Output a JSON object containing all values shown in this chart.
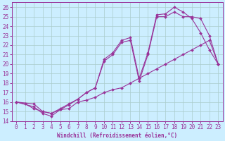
{
  "bg_color": "#cceeff",
  "grid_color": "#aacccc",
  "line_color": "#993399",
  "xlim": [
    -0.5,
    23.5
  ],
  "ylim": [
    14,
    26.5
  ],
  "xticks": [
    0,
    1,
    2,
    3,
    4,
    5,
    6,
    7,
    8,
    9,
    10,
    11,
    12,
    13,
    14,
    15,
    16,
    17,
    18,
    19,
    20,
    21,
    22,
    23
  ],
  "yticks": [
    14,
    15,
    16,
    17,
    18,
    19,
    20,
    21,
    22,
    23,
    24,
    25,
    26
  ],
  "xlabel": "Windchill (Refroidissement éolien,°C)",
  "line1_x": [
    0,
    1,
    2,
    3,
    4,
    5,
    6,
    7,
    8,
    9,
    10,
    11,
    12,
    13,
    14,
    15,
    16,
    17,
    18,
    19,
    20,
    21,
    22,
    23
  ],
  "line1_y": [
    16.0,
    15.8,
    15.3,
    15.0,
    14.8,
    15.2,
    15.3,
    16.0,
    16.2,
    16.5,
    17.0,
    17.3,
    17.5,
    18.0,
    18.5,
    19.0,
    19.5,
    20.0,
    20.5,
    21.0,
    21.5,
    22.0,
    22.5,
    20.0
  ],
  "line2_x": [
    0,
    2,
    3,
    4,
    5,
    6,
    7,
    8,
    9,
    10,
    11,
    12,
    13,
    14,
    15,
    16,
    17,
    18,
    19,
    20,
    21,
    22,
    23
  ],
  "line2_y": [
    16.0,
    15.5,
    14.8,
    14.5,
    15.2,
    15.7,
    16.3,
    17.0,
    17.5,
    20.5,
    21.2,
    22.5,
    22.8,
    18.5,
    21.2,
    25.2,
    25.3,
    26.0,
    25.5,
    24.8,
    23.3,
    21.5,
    20.0
  ],
  "line3_x": [
    0,
    2,
    3,
    4,
    5,
    6,
    7,
    8,
    9,
    10,
    11,
    12,
    13,
    14,
    15,
    16,
    17,
    18,
    19,
    20,
    21,
    22,
    23
  ],
  "line3_y": [
    16.0,
    15.8,
    15.0,
    14.8,
    15.3,
    15.8,
    16.3,
    17.0,
    17.5,
    20.3,
    21.0,
    22.3,
    22.5,
    18.2,
    21.0,
    25.0,
    25.0,
    25.5,
    25.0,
    25.0,
    24.8,
    23.0,
    20.0
  ],
  "marker": "D",
  "marker_size": 2.0,
  "line_width": 0.8,
  "tick_fontsize": 5.5,
  "xlabel_fontsize": 5.5
}
